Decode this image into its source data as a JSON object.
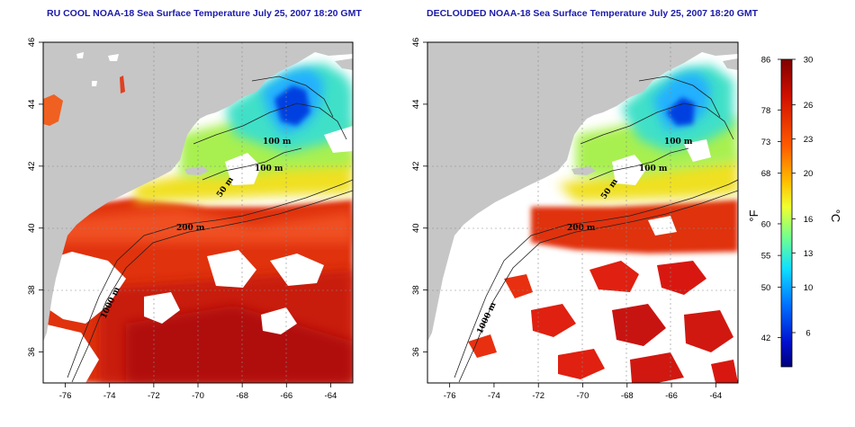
{
  "panels": [
    {
      "id": "left",
      "title": "RU COOL NOAA-18 Sea Surface Temperature July 25, 2007 18:20 GMT",
      "cloud_masked": false
    },
    {
      "id": "right",
      "title": "DECLOUDED NOAA-18 Sea Surface Temperature July 25, 2007 18:20 GMT",
      "cloud_masked": true
    }
  ],
  "axes": {
    "lon_ticks": [
      "-76",
      "-74",
      "-72",
      "-70",
      "-68",
      "-66",
      "-64"
    ],
    "lat_ticks": [
      "36",
      "38",
      "40",
      "42",
      "44",
      "46"
    ],
    "lon_range": [
      -77,
      -63
    ],
    "lat_range": [
      35,
      46
    ]
  },
  "isobath_labels": {
    "i100": "100 m",
    "i200": "200 m",
    "i50": "50 m",
    "i1000": "1000 m"
  },
  "colorbar": {
    "fahrenheit_ticks": [
      "86",
      "78",
      "73",
      "68",
      "60",
      "55",
      "50",
      "42"
    ],
    "celsius_ticks": [
      "30",
      "26",
      "23",
      "20",
      "16",
      "13",
      "10",
      "6"
    ],
    "fahrenheit_unit": "°F",
    "celsius_unit": "°C",
    "range_c": [
      3,
      30
    ],
    "colors": [
      "#00007a",
      "#0030ff",
      "#00b8ff",
      "#40ffd0",
      "#c8ff40",
      "#ffe000",
      "#ff7a00",
      "#e01000",
      "#800000"
    ]
  },
  "colors": {
    "land": "#c6c6c6",
    "cloud": "#ffffff",
    "frame": "#000000"
  }
}
